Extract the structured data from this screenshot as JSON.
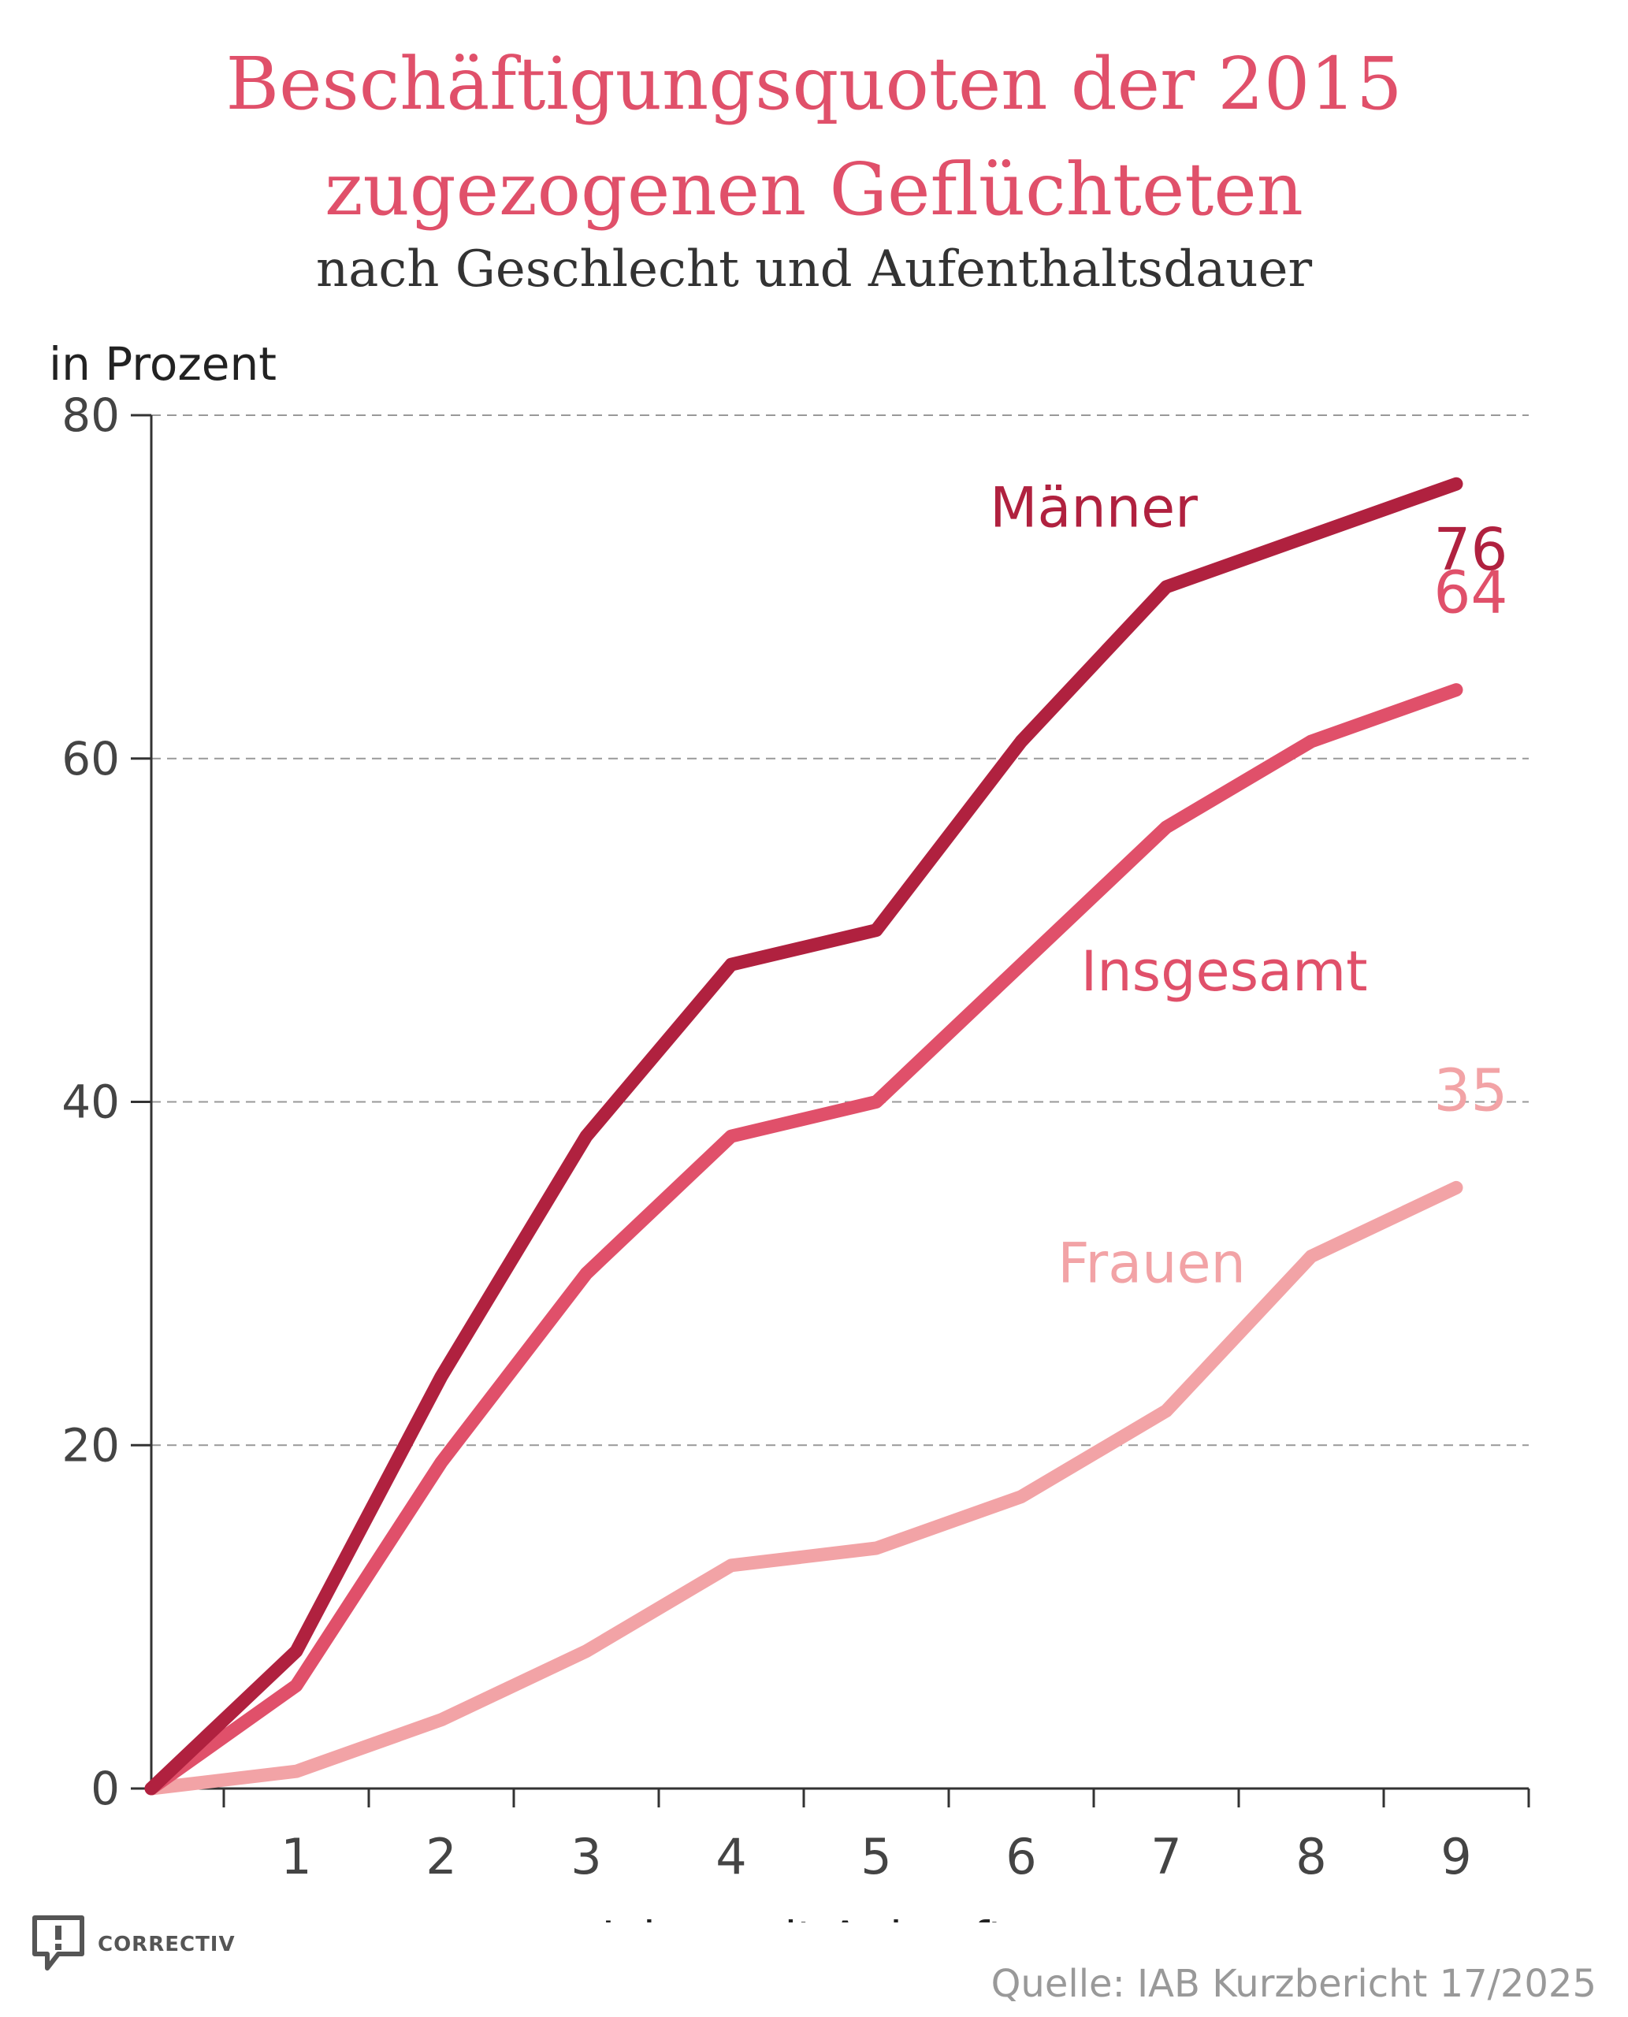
{
  "chart_data": {
    "type": "line",
    "title": "Beschäftigungsquoten der 2015 zugezogenen Geflüchteten",
    "subtitle": "nach Geschlecht und Aufenthaltsdauer",
    "ylabel": "in Prozent",
    "xlabel": "Jahre seit Ankunft",
    "x": [
      0,
      1,
      2,
      3,
      4,
      5,
      6,
      7,
      8,
      9
    ],
    "x_ticklabels": [
      "1",
      "2",
      "3",
      "4",
      "5",
      "6",
      "7",
      "8",
      "9"
    ],
    "y_ticks": [
      0,
      20,
      40,
      60,
      80
    ],
    "xlim": [
      0,
      9.5
    ],
    "ylim": [
      0,
      80
    ],
    "grid": "horizontal dashed",
    "series": [
      {
        "name": "Männer",
        "color": "#b0213f",
        "values": [
          0,
          8,
          24,
          38,
          48,
          50,
          61,
          70,
          73,
          76
        ],
        "end_label": "76"
      },
      {
        "name": "Insgesamt",
        "color": "#e0506a",
        "values": [
          0,
          6,
          19,
          30,
          38,
          40,
          48,
          56,
          61,
          64
        ],
        "end_label": "64"
      },
      {
        "name": "Frauen",
        "color": "#f2a3a6",
        "values": [
          0,
          1,
          4,
          8,
          13,
          14,
          17,
          22,
          31,
          35
        ],
        "end_label": "35"
      }
    ]
  },
  "footer": {
    "brand": "CORRECTIV",
    "source": "Quelle: IAB Kurzbericht 17/2025"
  },
  "colors": {
    "title": "#e0506a",
    "grid": "#999999",
    "axis": "#333333",
    "tick_label": "#444444"
  }
}
